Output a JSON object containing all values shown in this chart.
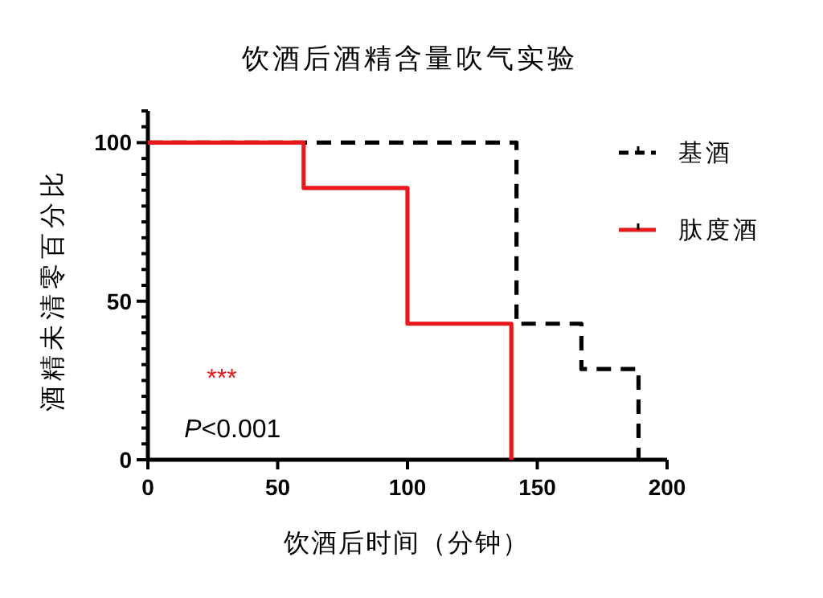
{
  "chart_data": {
    "type": "step",
    "title": "饮酒后酒精含量吹气实验",
    "xlabel": "饮酒后时间（分钟）",
    "ylabel": "酒精未清零百分比",
    "series": [
      {
        "name": "基酒",
        "color": "#000000",
        "line_style": "dashed",
        "x": [
          0,
          142,
          167,
          189
        ],
        "values": [
          100,
          42.9,
          28.6,
          0
        ]
      },
      {
        "name": "肽度酒",
        "color": "#e8191b",
        "line_style": "solid",
        "x": [
          0,
          60,
          100,
          140
        ],
        "values": [
          100,
          85.7,
          42.9,
          0
        ]
      }
    ],
    "xlim": [
      0,
      200
    ],
    "xticks": [
      0,
      50,
      100,
      150,
      200
    ],
    "ylim": [
      0,
      110
    ],
    "yticks": [
      0,
      {
        "value": 5,
        "label": null
      },
      {
        "value": 10,
        "label": null
      },
      {
        "value": 15,
        "label": null
      },
      {
        "value": 20,
        "label": null
      },
      {
        "value": 25,
        "label": null
      },
      {
        "value": 30,
        "label": null
      },
      {
        "value": 35,
        "label": null
      },
      {
        "value": 40,
        "label": null
      },
      {
        "value": 45,
        "label": null
      },
      50,
      {
        "value": 55,
        "label": null
      },
      {
        "value": 60,
        "label": null
      },
      {
        "value": 65,
        "label": null
      },
      {
        "value": 70,
        "label": null
      },
      {
        "value": 75,
        "label": null
      },
      {
        "value": 80,
        "label": null
      },
      {
        "value": 85,
        "label": null
      },
      {
        "value": 90,
        "label": null
      },
      {
        "value": 95,
        "label": null
      },
      100,
      {
        "value": 105,
        "label": null
      },
      {
        "value": 110,
        "label": null
      }
    ],
    "annotations": [
      "***",
      "P<0.001"
    ],
    "legend": "right",
    "grid": false
  }
}
